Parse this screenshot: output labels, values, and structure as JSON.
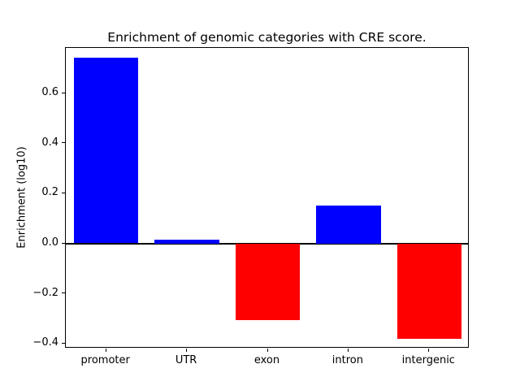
{
  "chart_data": {
    "type": "bar",
    "title": "Enrichment of genomic categories with CRE score.",
    "ylabel": "Enrichment (log10)",
    "xlabel": "",
    "categories": [
      "promoter",
      "UTR",
      "exon",
      "intron",
      "intergenic"
    ],
    "values": [
      0.74,
      0.015,
      -0.305,
      0.15,
      -0.38
    ],
    "colors": [
      "#0000ff",
      "#0000ff",
      "#ff0000",
      "#0000ff",
      "#ff0000"
    ],
    "bar_width_fraction": 0.8,
    "ylim": [
      -0.42,
      0.78
    ],
    "yticks": [
      -0.4,
      -0.2,
      0.0,
      0.2,
      0.4,
      0.6
    ],
    "ytick_labels": [
      "−0.4",
      "−0.2",
      "0.0",
      "0.2",
      "0.4",
      "0.6"
    ],
    "grid": false,
    "legend": "none",
    "zero_line": true,
    "positive_color": "#0000ff",
    "negative_color": "#ff0000"
  }
}
